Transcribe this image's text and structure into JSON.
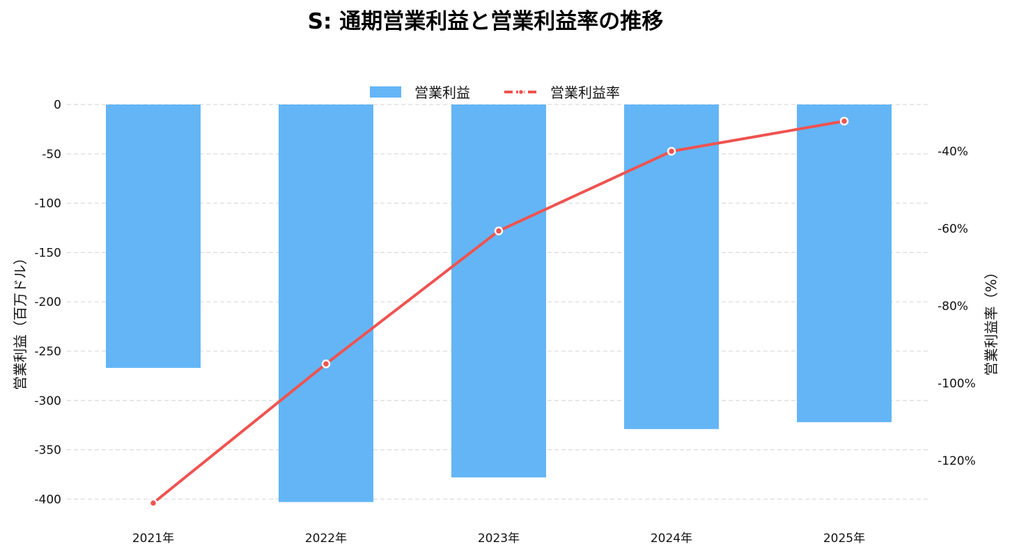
{
  "chart_data": {
    "type": "bar",
    "title": "S: 通期営業利益と営業利益率の推移",
    "categories": [
      "2021年",
      "2022年",
      "2023年",
      "2024年",
      "2025年"
    ],
    "series": [
      {
        "name": "営業利益",
        "type": "bar",
        "axis": "left",
        "color": "#64b5f6",
        "values": [
          -267,
          -403,
          -378,
          -329,
          -322
        ]
      },
      {
        "name": "営業利益率",
        "type": "line",
        "axis": "right",
        "color": "#ef5350",
        "values": [
          -131.0,
          -95.0,
          -60.6,
          -40.0,
          -32.2
        ]
      }
    ],
    "ylabel": "営業利益（百万ドル）",
    "y2label": "営業利益率（%）",
    "ylim": [
      -404,
      0
    ],
    "y2lim": [
      -131,
      -27.9
    ],
    "yticks": [
      "0",
      "-50",
      "-100",
      "-150",
      "-200",
      "-250",
      "-300",
      "-350",
      "-400"
    ],
    "y2ticks": [
      "-40%",
      "-60%",
      "-80%",
      "-100%",
      "-120%"
    ],
    "grid": true,
    "legend_position": "top-center"
  }
}
